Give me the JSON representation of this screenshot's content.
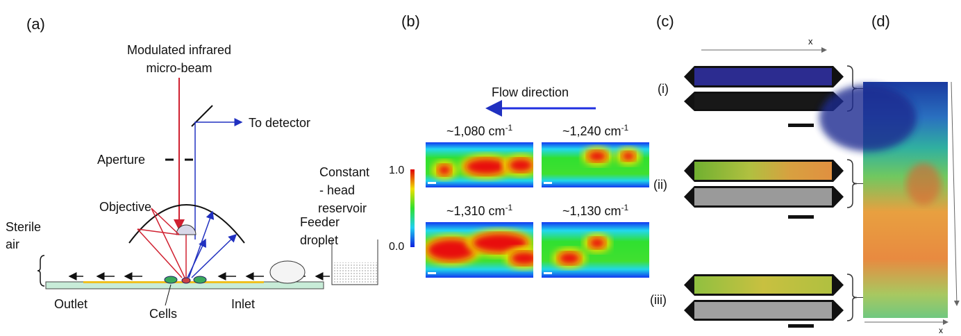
{
  "panels": {
    "a": {
      "label": "(a)",
      "beam": [
        "Modulated infrared",
        "micro-beam"
      ],
      "detector": "To detector",
      "aperture": "Aperture",
      "objective": "Objective",
      "sterile_air": [
        "Sterile",
        "air"
      ],
      "feeder": [
        "Feeder",
        "droplet"
      ],
      "reservoir": [
        "Constant",
        "- head",
        "reservoir"
      ],
      "outlet": "Outlet",
      "cells": "Cells",
      "inlet": "Inlet"
    },
    "b": {
      "label": "(b)",
      "flow": "Flow direction",
      "maps": [
        {
          "text": "~1,080 cm",
          "sup": "-1"
        },
        {
          "text": "~1,240 cm",
          "sup": "-1"
        },
        {
          "text": "~1,310 cm",
          "sup": "-1"
        },
        {
          "text": "~1,130 cm",
          "sup": "-1"
        }
      ],
      "colorbar": [
        "1.0",
        "0.0"
      ]
    },
    "c": {
      "label": "(c)",
      "axis": "x",
      "rows": [
        "(i)",
        "(ii)",
        "(iii)"
      ]
    },
    "d": {
      "label": "(d)",
      "axis": "x"
    }
  }
}
